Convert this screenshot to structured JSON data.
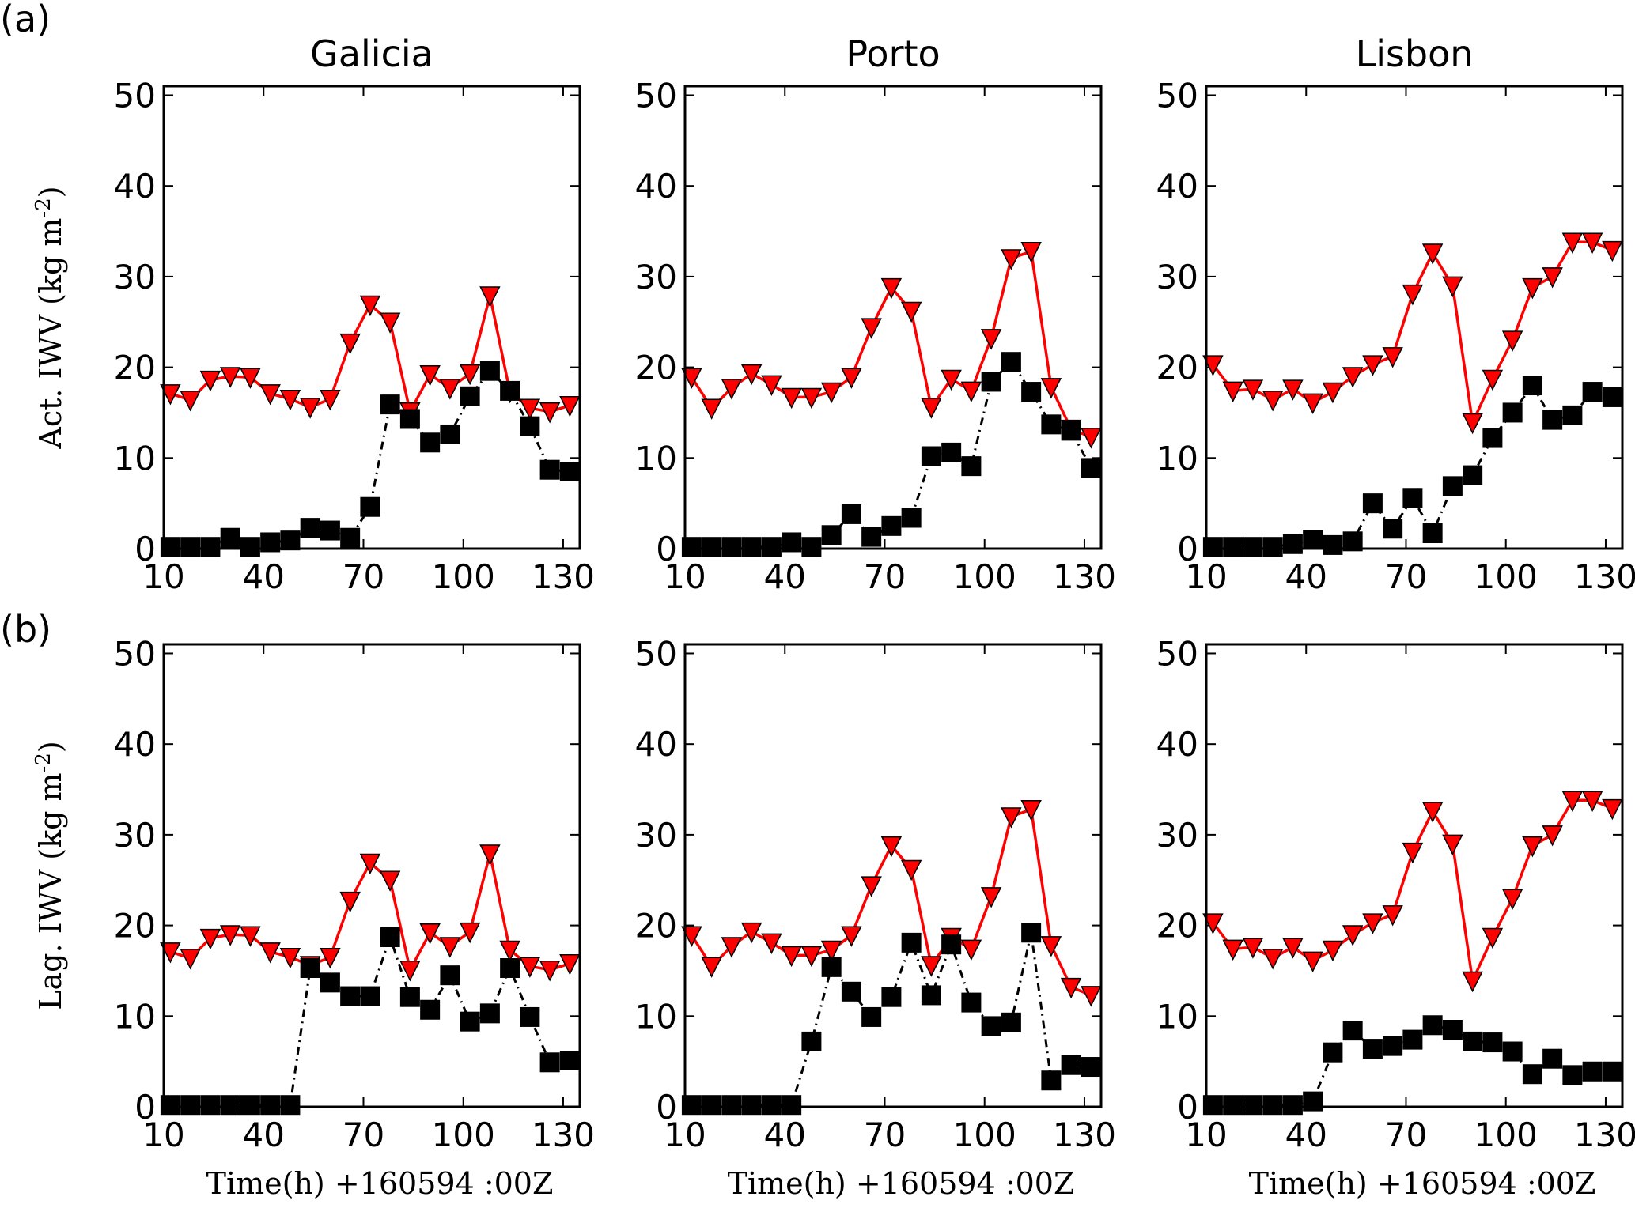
{
  "figure": {
    "row_labels": [
      "(a)",
      "(b)"
    ],
    "column_titles": [
      "Galicia",
      "Porto",
      "Lisbon"
    ],
    "row_ylabels": [
      "Act. IWV (kg m",
      "Lag. IWV (kg m"
    ],
    "ylabel_superscript": "-2",
    "ylabel_close": ")",
    "xlabel": "Time(h) +160594 :00Z",
    "colors": {
      "observed": "#ff0000",
      "model": "#000000"
    }
  },
  "chart_data": {
    "type": "line",
    "layout": "2x3 grid",
    "x": [
      12,
      18,
      24,
      30,
      36,
      42,
      48,
      54,
      60,
      66,
      72,
      78,
      84,
      90,
      96,
      102,
      108,
      114,
      120,
      126,
      132
    ],
    "xlim": [
      10,
      135
    ],
    "ylim": [
      0,
      51
    ],
    "xticks": [
      10,
      40,
      70,
      100,
      130
    ],
    "yticks": [
      0,
      10,
      20,
      30,
      40,
      50
    ],
    "xlabel": "Time(h) +160594 :00Z",
    "grid": false,
    "panels": [
      {
        "row": "(a)",
        "title": "Galicia",
        "ylabel": "Act. IWV (kg m-2)",
        "series": [
          {
            "name": "red-triangles",
            "style": "solid",
            "marker": "triangle-down",
            "color": "#ff0000",
            "values": [
              17.1,
              16.4,
              18.6,
              19.0,
              18.9,
              17.1,
              16.5,
              15.6,
              16.5,
              22.7,
              26.9,
              25.0,
              15.1,
              19.2,
              17.7,
              19.3,
              27.9,
              17.3,
              15.5,
              15.1,
              15.8
            ]
          },
          {
            "name": "black-squares",
            "style": "dashdot",
            "marker": "square",
            "color": "#000000",
            "values": [
              0.2,
              0.2,
              0.2,
              1.2,
              0.2,
              0.7,
              0.9,
              2.3,
              2.0,
              1.2,
              4.6,
              15.9,
              14.3,
              11.7,
              12.6,
              16.8,
              19.6,
              17.4,
              13.5,
              8.7,
              8.5
            ]
          }
        ]
      },
      {
        "row": "(a)",
        "title": "Porto",
        "ylabel": "",
        "series": [
          {
            "name": "red-triangles",
            "style": "solid",
            "marker": "triangle-down",
            "color": "#ff0000",
            "values": [
              18.9,
              15.5,
              17.7,
              19.3,
              18.1,
              16.7,
              16.7,
              17.3,
              18.9,
              24.4,
              28.8,
              26.2,
              15.6,
              18.7,
              17.4,
              23.2,
              32.0,
              32.8,
              17.8,
              13.2,
              12.3
            ]
          },
          {
            "name": "black-squares",
            "style": "dashdot",
            "marker": "square",
            "color": "#000000",
            "values": [
              0.2,
              0.2,
              0.2,
              0.2,
              0.2,
              0.7,
              0.2,
              1.5,
              3.8,
              1.3,
              2.5,
              3.4,
              10.2,
              10.6,
              9.1,
              18.4,
              20.6,
              17.3,
              13.7,
              13.0,
              8.9
            ]
          }
        ]
      },
      {
        "row": "(a)",
        "title": "Lisbon",
        "ylabel": "",
        "series": [
          {
            "name": "red-triangles",
            "style": "solid",
            "marker": "triangle-down",
            "color": "#ff0000",
            "values": [
              20.3,
              17.4,
              17.6,
              16.4,
              17.6,
              16.1,
              17.3,
              19.0,
              20.3,
              21.2,
              28.1,
              32.6,
              29.0,
              13.9,
              18.7,
              23.0,
              28.8,
              30.0,
              33.8,
              33.8,
              32.9
            ]
          },
          {
            "name": "black-squares",
            "style": "dashdot",
            "marker": "square",
            "color": "#000000",
            "values": [
              0.2,
              0.2,
              0.2,
              0.2,
              0.5,
              1.0,
              0.4,
              0.8,
              5.0,
              2.2,
              5.6,
              1.7,
              6.9,
              8.1,
              12.2,
              15.0,
              18.0,
              14.2,
              14.7,
              17.3,
              16.7
            ]
          }
        ]
      },
      {
        "row": "(b)",
        "title": "Galicia",
        "ylabel": "Lag. IWV (kg m-2)",
        "series": [
          {
            "name": "red-triangles",
            "style": "solid",
            "marker": "triangle-down",
            "color": "#ff0000",
            "values": [
              17.1,
              16.4,
              18.6,
              19.0,
              18.9,
              17.1,
              16.5,
              15.6,
              16.5,
              22.7,
              26.9,
              25.0,
              15.1,
              19.2,
              17.7,
              19.3,
              27.9,
              17.3,
              15.5,
              15.1,
              15.8
            ]
          },
          {
            "name": "black-squares",
            "style": "dashdot",
            "marker": "square",
            "color": "#000000",
            "values": [
              0.2,
              0.2,
              0.2,
              0.2,
              0.2,
              0.2,
              0.2,
              15.3,
              13.7,
              12.2,
              12.2,
              18.7,
              12.1,
              10.7,
              14.5,
              9.4,
              10.3,
              15.3,
              9.9,
              4.9,
              5.1
            ]
          }
        ]
      },
      {
        "row": "(b)",
        "title": "Porto",
        "ylabel": "",
        "series": [
          {
            "name": "red-triangles",
            "style": "solid",
            "marker": "triangle-down",
            "color": "#ff0000",
            "values": [
              18.9,
              15.5,
              17.7,
              19.3,
              18.1,
              16.7,
              16.7,
              17.3,
              18.9,
              24.4,
              28.8,
              26.2,
              15.6,
              18.7,
              17.4,
              23.2,
              32.0,
              32.8,
              17.8,
              13.2,
              12.3
            ]
          },
          {
            "name": "black-squares",
            "style": "dashdot",
            "marker": "square",
            "color": "#000000",
            "values": [
              0.2,
              0.2,
              0.2,
              0.2,
              0.2,
              0.2,
              7.2,
              15.4,
              12.7,
              9.9,
              12.1,
              18.1,
              12.3,
              17.9,
              11.5,
              8.9,
              9.3,
              19.2,
              2.9,
              4.6,
              4.4
            ]
          }
        ]
      },
      {
        "row": "(b)",
        "title": "Lisbon",
        "ylabel": "",
        "series": [
          {
            "name": "red-triangles",
            "style": "solid",
            "marker": "triangle-down",
            "color": "#ff0000",
            "values": [
              20.3,
              17.4,
              17.6,
              16.4,
              17.6,
              16.1,
              17.3,
              19.0,
              20.3,
              21.2,
              28.1,
              32.6,
              29.0,
              13.9,
              18.7,
              23.0,
              28.8,
              30.0,
              33.8,
              33.8,
              32.9
            ]
          },
          {
            "name": "black-squares",
            "style": "dashdot",
            "marker": "square",
            "color": "#000000",
            "values": [
              0.2,
              0.2,
              0.2,
              0.2,
              0.2,
              0.6,
              6.0,
              8.4,
              6.4,
              6.7,
              7.4,
              9.0,
              8.5,
              7.2,
              7.1,
              6.1,
              3.6,
              5.3,
              3.5,
              3.9,
              3.9
            ]
          }
        ]
      }
    ]
  }
}
